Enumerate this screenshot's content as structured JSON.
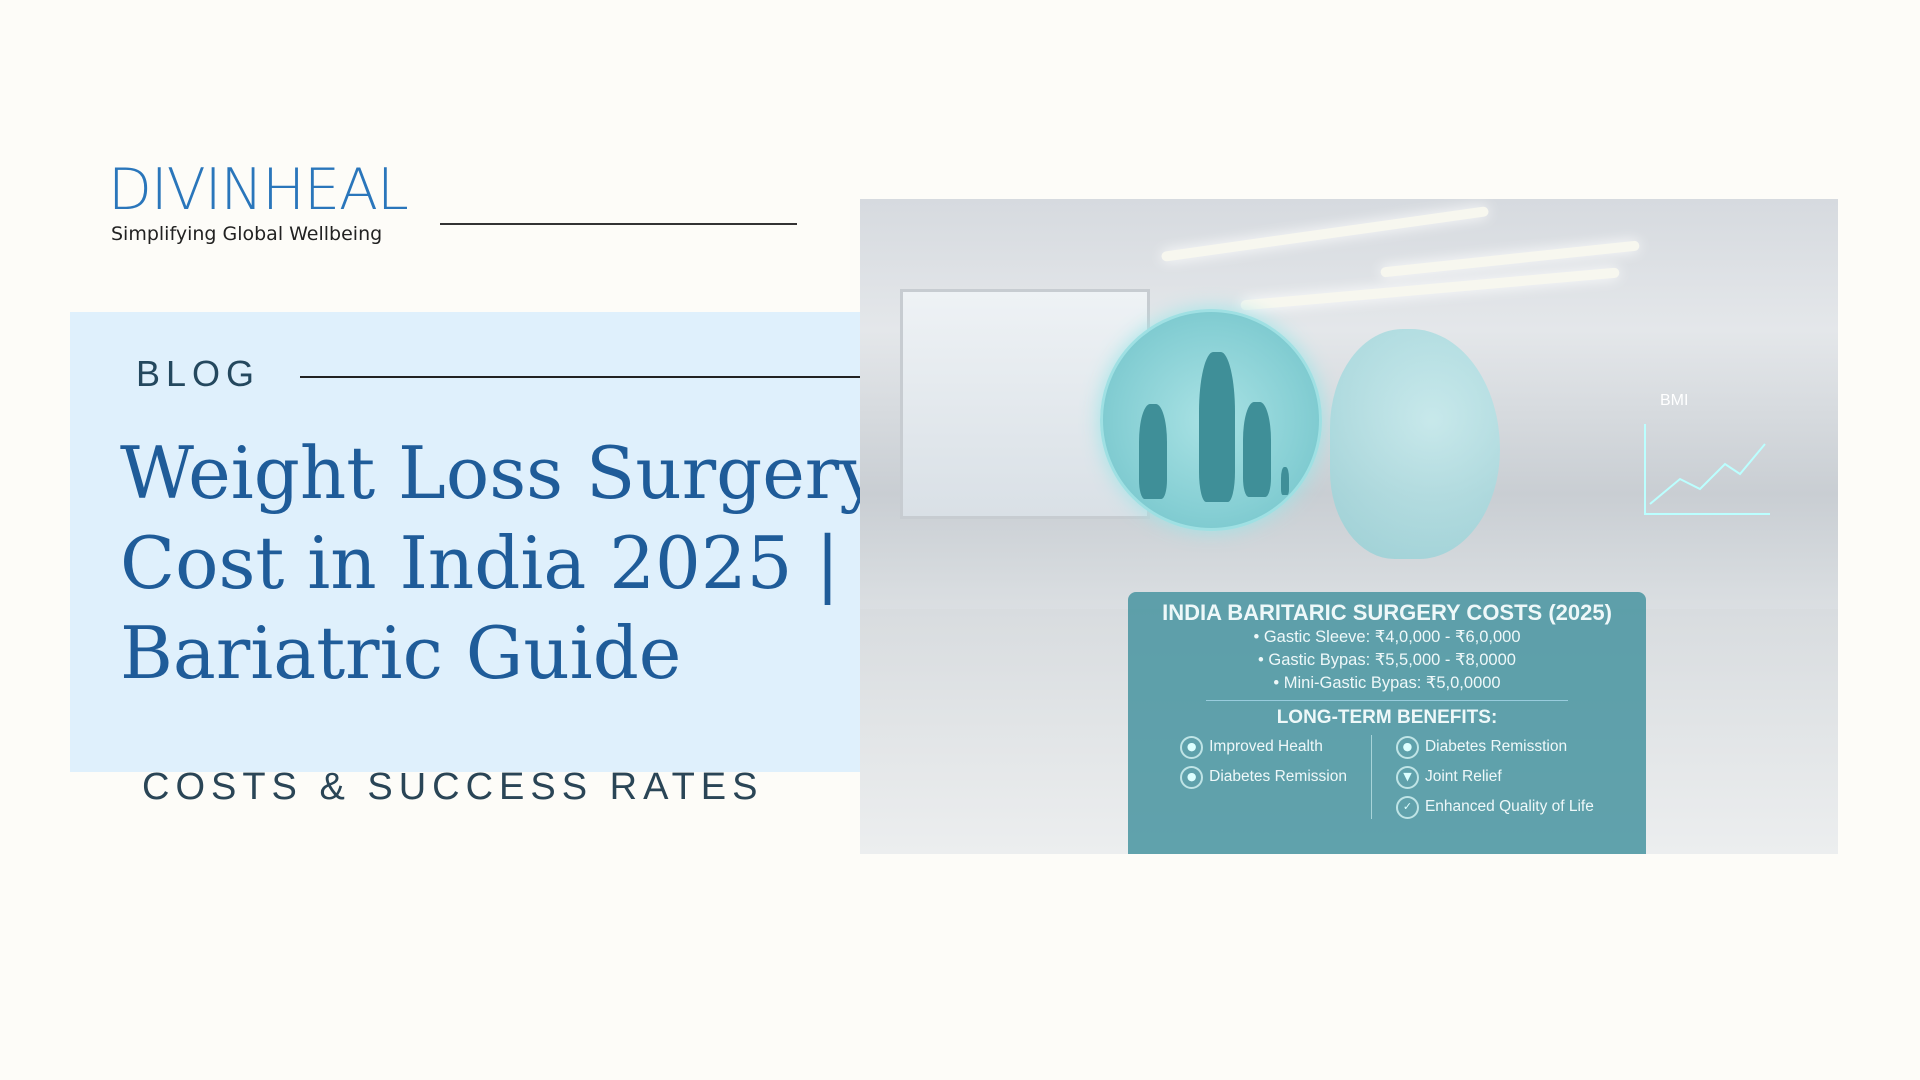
{
  "logo": {
    "name": "DIVINHEAL",
    "tagline": "Simplifying Global Wellbeing"
  },
  "label": "BLOG",
  "title": "Weight Loss Surgery Cost in India 2025 | Bariatric Guide",
  "subtitle": "COSTS & SUCCESS RATES",
  "image": {
    "chart_label": "BMI",
    "panel_title": "INDIA BARITARIC SURGERY COSTS (2025)",
    "costs": [
      "• Gastic Sleeve: ₹4,0,000 - ₹6,0,000",
      "• Gastic Bypas: ₹5,5,000 - ₹8,0000",
      "• Mini-Gastic Bypas: ₹5,0,0000"
    ],
    "benefits_title": "LONG-TERM BENEFITS:",
    "benefits_left": [
      {
        "label": "Improved Health",
        "icon": "person-icon"
      },
      {
        "label": "Diabetes Remission",
        "icon": "doctor-icon"
      }
    ],
    "benefits_right": [
      {
        "label": "Diabetes Remisstion",
        "icon": "doctor-icon"
      },
      {
        "label": "Joint Relief",
        "icon": "location-pin-icon"
      },
      {
        "label": "Enhanced Quality of Life",
        "icon": "check-icon"
      }
    ]
  },
  "colors": {
    "brand": "#2a76bb",
    "title": "#1f5c99",
    "box": "#dff0fc",
    "panel": "#4894a0"
  }
}
